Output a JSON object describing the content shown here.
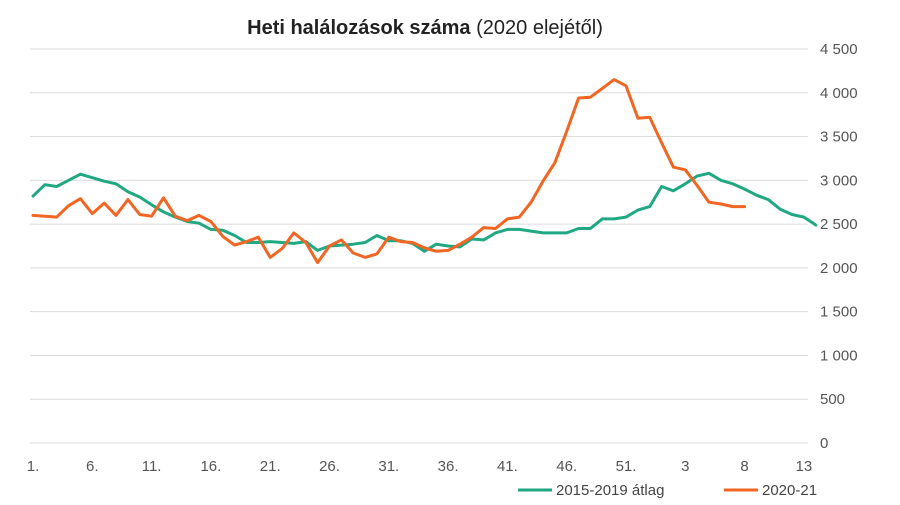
{
  "chart_data": {
    "type": "line",
    "title_bold": "Heti halálozások száma",
    "title_rest": " (2020 elejétől)",
    "x_tick_labels": [
      "1.",
      "6.",
      "11.",
      "16.",
      "21.",
      "26.",
      "31.",
      "36.",
      "41.",
      "46.",
      "51.",
      "3",
      "8",
      "13"
    ],
    "ylim": [
      0,
      4500
    ],
    "y_ticks": [
      0,
      500,
      1000,
      1500,
      2000,
      2500,
      3000,
      3500,
      4000,
      4500
    ],
    "y_tick_labels": [
      "0",
      "500",
      "1 000",
      "1 500",
      "2 000",
      "2 500",
      "3 000",
      "3 500",
      "4 000",
      "4 500"
    ],
    "grid": true,
    "legend": "bottom-right",
    "series": [
      {
        "name": "2015-2019 átlag",
        "color": "#1fa882",
        "values": [
          2820,
          2950,
          2930,
          3000,
          3070,
          3030,
          2990,
          2960,
          2870,
          2810,
          2720,
          2640,
          2580,
          2530,
          2510,
          2440,
          2430,
          2370,
          2290,
          2290,
          2300,
          2290,
          2280,
          2300,
          2200,
          2250,
          2260,
          2270,
          2290,
          2370,
          2310,
          2310,
          2280,
          2190,
          2270,
          2250,
          2240,
          2330,
          2320,
          2400,
          2440,
          2440,
          2420,
          2400,
          2400,
          2400,
          2450,
          2450,
          2560,
          2560,
          2580,
          2660,
          2700,
          2930,
          2880,
          2960,
          3050,
          3080,
          3000,
          2960,
          2900,
          2830,
          2780,
          2670,
          2610,
          2580,
          2490
        ]
      },
      {
        "name": "2020-21",
        "color": "#f26522",
        "values": [
          2600,
          2590,
          2580,
          2710,
          2790,
          2620,
          2740,
          2600,
          2780,
          2610,
          2590,
          2800,
          2590,
          2540,
          2600,
          2530,
          2360,
          2260,
          2300,
          2350,
          2120,
          2220,
          2400,
          2290,
          2060,
          2250,
          2320,
          2170,
          2120,
          2160,
          2350,
          2300,
          2290,
          2230,
          2190,
          2200,
          2270,
          2350,
          2460,
          2450,
          2560,
          2580,
          2750,
          2990,
          3200,
          3560,
          3940,
          3950,
          4050,
          4150,
          4080,
          3710,
          3720,
          3430,
          3150,
          3120,
          2940,
          2750,
          2730,
          2700,
          2700
        ]
      }
    ]
  }
}
